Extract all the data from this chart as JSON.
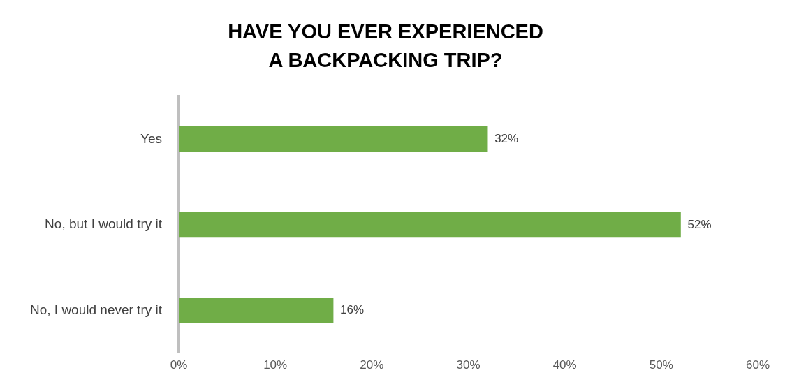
{
  "chart_data": {
    "type": "bar",
    "orientation": "horizontal",
    "title": "HAVE YOU EVER EXPERIENCED\nA BACKPACKING TRIP?",
    "categories": [
      "Yes",
      "No, but I would try it",
      "No, I would never try it"
    ],
    "values": [
      32,
      52,
      16
    ],
    "color": "#70ad47",
    "value_labels": [
      "32%",
      "52%",
      "16%"
    ],
    "xlim": [
      0,
      60
    ],
    "xticks": [
      {
        "value": 0,
        "label": "0%"
      },
      {
        "value": 10,
        "label": "10%"
      },
      {
        "value": 20,
        "label": "20%"
      },
      {
        "value": 30,
        "label": "30%"
      },
      {
        "value": 40,
        "label": "40%"
      },
      {
        "value": 50,
        "label": "50%"
      },
      {
        "value": 60,
        "label": "60%"
      }
    ],
    "grid": false,
    "legend": false
  }
}
